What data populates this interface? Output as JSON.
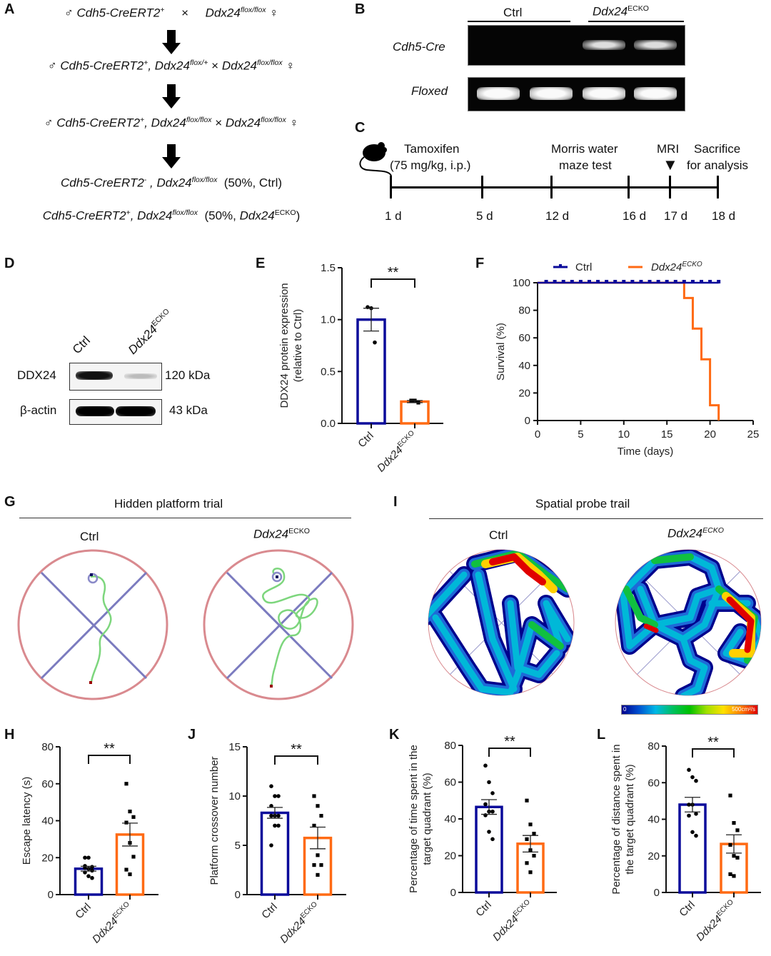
{
  "panels": {
    "A": {
      "label": "A",
      "lines": [
        {
          "male": "♂",
          "g1": "Cdh5-CreERT2",
          "g1sup": "+",
          "cross": "×",
          "g2": "Ddx24",
          "g2sup": "flox/flox",
          "female": "♀"
        },
        {
          "male": "♂",
          "g1": "Cdh5-CreERT2",
          "g1sup": "+",
          "g1b": ", Ddx24",
          "g1bsup": "flox/+",
          "cross": "×",
          "g2": "Ddx24",
          "g2sup": "flox/flox",
          "female": "♀"
        },
        {
          "male": "♂",
          "g1": "Cdh5-CreERT2",
          "g1sup": "+",
          "g1b": ", Ddx24",
          "g1bsup": "flox/flox",
          "cross": "×",
          "g2": "Ddx24",
          "g2sup": "flox/flox",
          "female": "♀"
        }
      ],
      "offspring": [
        {
          "g1": "Cdh5-CreERT2",
          "g1sup": "-",
          "g2": " , Ddx24",
          "g2sup": "flox/flox",
          "note": "(50%, Ctrl)"
        },
        {
          "g1": "Cdh5-CreERT2",
          "g1sup": "+",
          "g2": ", Ddx24",
          "g2sup": "flox/flox",
          "note_pre": "(50%, ",
          "note_it": "Ddx24",
          "note_sup": "ECKO",
          "note_post": ")"
        }
      ],
      "arrow_icon": "down-arrow-icon"
    },
    "B": {
      "label": "B",
      "group_ctrl": "Ctrl",
      "group_ko": "Ddx24",
      "group_ko_sup": "ECKO",
      "row1": "Cdh5-Cre",
      "row2": "Floxed",
      "cre_bands": [
        0,
        0,
        1,
        1
      ],
      "flox_bands": [
        1,
        1,
        1,
        1
      ]
    },
    "C": {
      "label": "C",
      "mouse_icon": "mouse-icon",
      "events": [
        {
          "title": "Tamoxifen",
          "sub": "(75 mg/kg, i.p.)"
        },
        {
          "title": "Morris water",
          "sub": "maze test"
        },
        {
          "title": "MRI",
          "marker": "▼"
        },
        {
          "title": "Sacrifice",
          "sub": "for analysis"
        }
      ],
      "ticks": [
        "1 d",
        "5 d",
        "12 d",
        "16 d",
        "17 d",
        "18 d"
      ]
    },
    "D": {
      "label": "D",
      "lane1": "Ctrl",
      "lane2": "Ddx24",
      "lane2_sup": "ECKO",
      "row1": "DDX24",
      "row1_size": "120 kDa",
      "row2": "β-actin",
      "row2_size": "43  kDa"
    },
    "G": {
      "label": "G",
      "title": "Hidden platform trial",
      "ctrl": "Ctrl",
      "ko": "Ddx24",
      "ko_sup": "ECKO"
    },
    "I": {
      "label": "I",
      "title": "Spatial probe trail",
      "ctrl": "Ctrl",
      "ko": "Ddx24",
      "ko_sup": "ECKO",
      "colorbar_min": "0",
      "colorbar_max": "500cm²/s"
    }
  },
  "colors": {
    "ctrl": "#0a0a9a",
    "ko": "#ff6a13",
    "pool": "#d98a8f",
    "quadrant": "#7b7bbf",
    "path": "#7dd67d"
  },
  "chart_data": [
    {
      "id": "E",
      "label": "E",
      "type": "bar",
      "title": "",
      "ylabel": "DDX24 protein expression\n(relative to Ctrl)",
      "ylabel_lines": [
        "DDX24 protein expression",
        "(relative to Ctrl)"
      ],
      "xlabel": "",
      "categories": [
        "Ctrl",
        "Ddx24ECKO"
      ],
      "category_labels": [
        {
          "main": "Ctrl",
          "sup": ""
        },
        {
          "main": "Ddx24",
          "sup": "ECKO"
        }
      ],
      "values": [
        1.0,
        0.21
      ],
      "sem": [
        0.11,
        0.01
      ],
      "points": [
        [
          1.12,
          1.11,
          0.78
        ],
        [
          0.22,
          0.22,
          0.2
        ]
      ],
      "ylim": [
        0,
        1.5
      ],
      "yticks": [
        0.0,
        0.5,
        1.0,
        1.5
      ],
      "ytick_labels": [
        "0.0",
        "0.5",
        "1.0",
        "1.5"
      ],
      "significance": "**",
      "grid": false
    },
    {
      "id": "F",
      "label": "F",
      "type": "line",
      "title": "",
      "ylabel": "Survival (%)",
      "xlabel": "Time (days)",
      "xlim": [
        0,
        25
      ],
      "ylim": [
        0,
        100
      ],
      "xticks": [
        0,
        5,
        10,
        15,
        20,
        25
      ],
      "yticks": [
        0,
        20,
        40,
        60,
        80,
        100
      ],
      "legend": "top",
      "series": [
        {
          "name": "Ctrl",
          "name_sup": "",
          "x": [
            0,
            21
          ],
          "y": [
            100,
            100
          ],
          "censor_x": [
            1,
            2,
            3,
            4,
            5,
            6,
            7,
            8,
            9,
            10,
            11,
            12,
            13,
            14,
            15,
            16,
            17,
            18,
            19,
            20,
            21
          ]
        },
        {
          "name": "Ddx24",
          "name_sup": "ECKO",
          "x": [
            0,
            17,
            18,
            19,
            20,
            21
          ],
          "y": [
            100,
            88.9,
            66.7,
            44.4,
            11.1,
            0
          ]
        }
      ],
      "grid": false
    },
    {
      "id": "H",
      "label": "H",
      "type": "bar",
      "ylabel": "Escape latency (s)",
      "ylabel_lines": [
        "Escape latency (s)"
      ],
      "categories": [
        "Ctrl",
        "Ddx24ECKO"
      ],
      "category_labels": [
        {
          "main": "Ctrl",
          "sup": ""
        },
        {
          "main": "Ddx24",
          "sup": "ECKO"
        }
      ],
      "values": [
        14,
        32.5
      ],
      "sem": [
        1.3,
        6.2
      ],
      "points": [
        [
          20,
          20,
          15,
          14.5,
          14,
          13,
          12,
          10,
          9,
          15.5
        ],
        [
          60,
          45,
          42,
          39,
          28,
          20.5,
          13.5,
          11
        ]
      ],
      "ylim": [
        0,
        80
      ],
      "yticks": [
        0,
        20,
        40,
        60,
        80
      ],
      "ytick_labels": [
        "0",
        "20",
        "40",
        "60",
        "80"
      ],
      "significance": "**",
      "grid": false
    },
    {
      "id": "J",
      "label": "J",
      "type": "bar",
      "ylabel": "Platform crossover number",
      "ylabel_lines": [
        "Platform crossover number"
      ],
      "categories": [
        "Ctrl",
        "Ddx24ECKO"
      ],
      "category_labels": [
        {
          "main": "Ctrl",
          "sup": ""
        },
        {
          "main": "Ddx24",
          "sup": "ECKO"
        }
      ],
      "values": [
        8.3,
        5.75
      ],
      "sem": [
        0.55,
        1.1
      ],
      "points": [
        [
          11,
          10,
          10,
          9,
          8,
          8,
          8,
          7,
          7,
          5
        ],
        [
          10,
          9,
          8,
          7,
          4,
          3,
          3,
          2
        ]
      ],
      "ylim": [
        0,
        15
      ],
      "yticks": [
        0,
        5,
        10,
        15
      ],
      "ytick_labels": [
        "0",
        "5",
        "10",
        "15"
      ],
      "significance": "**",
      "grid": false
    },
    {
      "id": "K",
      "label": "K",
      "type": "bar",
      "ylabel": "Percentage of time spent in the target quadrant (%)",
      "ylabel_lines": [
        "Percentage of time spent in the",
        "target quadrant (%)"
      ],
      "categories": [
        "Ctrl",
        "Ddx24ECKO"
      ],
      "category_labels": [
        {
          "main": "Ctrl",
          "sup": ""
        },
        {
          "main": "Ddx24",
          "sup": "ECKO"
        }
      ],
      "values": [
        46.5,
        26.5
      ],
      "sem": [
        4.0,
        4.5
      ],
      "points": [
        [
          69,
          60,
          54,
          48,
          44,
          44,
          42,
          33,
          29
        ],
        [
          50,
          37,
          32,
          29,
          23,
          20,
          16,
          11
        ]
      ],
      "ylim": [
        0,
        80
      ],
      "yticks": [
        0,
        20,
        40,
        60,
        80
      ],
      "ytick_labels": [
        "0",
        "20",
        "40",
        "60",
        "80"
      ],
      "significance": "**",
      "grid": false
    },
    {
      "id": "L",
      "label": "L",
      "type": "bar",
      "ylabel": "Percentage of distance spent in the target quadrant (%)",
      "ylabel_lines": [
        "Percentage of distance spent in",
        "the target quadrant (%)"
      ],
      "categories": [
        "Ctrl",
        "Ddx24ECKO"
      ],
      "category_labels": [
        {
          "main": "Ctrl",
          "sup": ""
        },
        {
          "main": "Ddx24",
          "sup": "ECKO"
        }
      ],
      "values": [
        48,
        26.5
      ],
      "sem": [
        4.0,
        5.0
      ],
      "points": [
        [
          67,
          63,
          61,
          48,
          48,
          43,
          42,
          33,
          31
        ],
        [
          53,
          38,
          34,
          26,
          20,
          19,
          10,
          9
        ]
      ],
      "ylim": [
        0,
        80
      ],
      "yticks": [
        0,
        20,
        40,
        60,
        80
      ],
      "ytick_labels": [
        "0",
        "20",
        "40",
        "60",
        "80"
      ],
      "significance": "**",
      "grid": false
    }
  ]
}
